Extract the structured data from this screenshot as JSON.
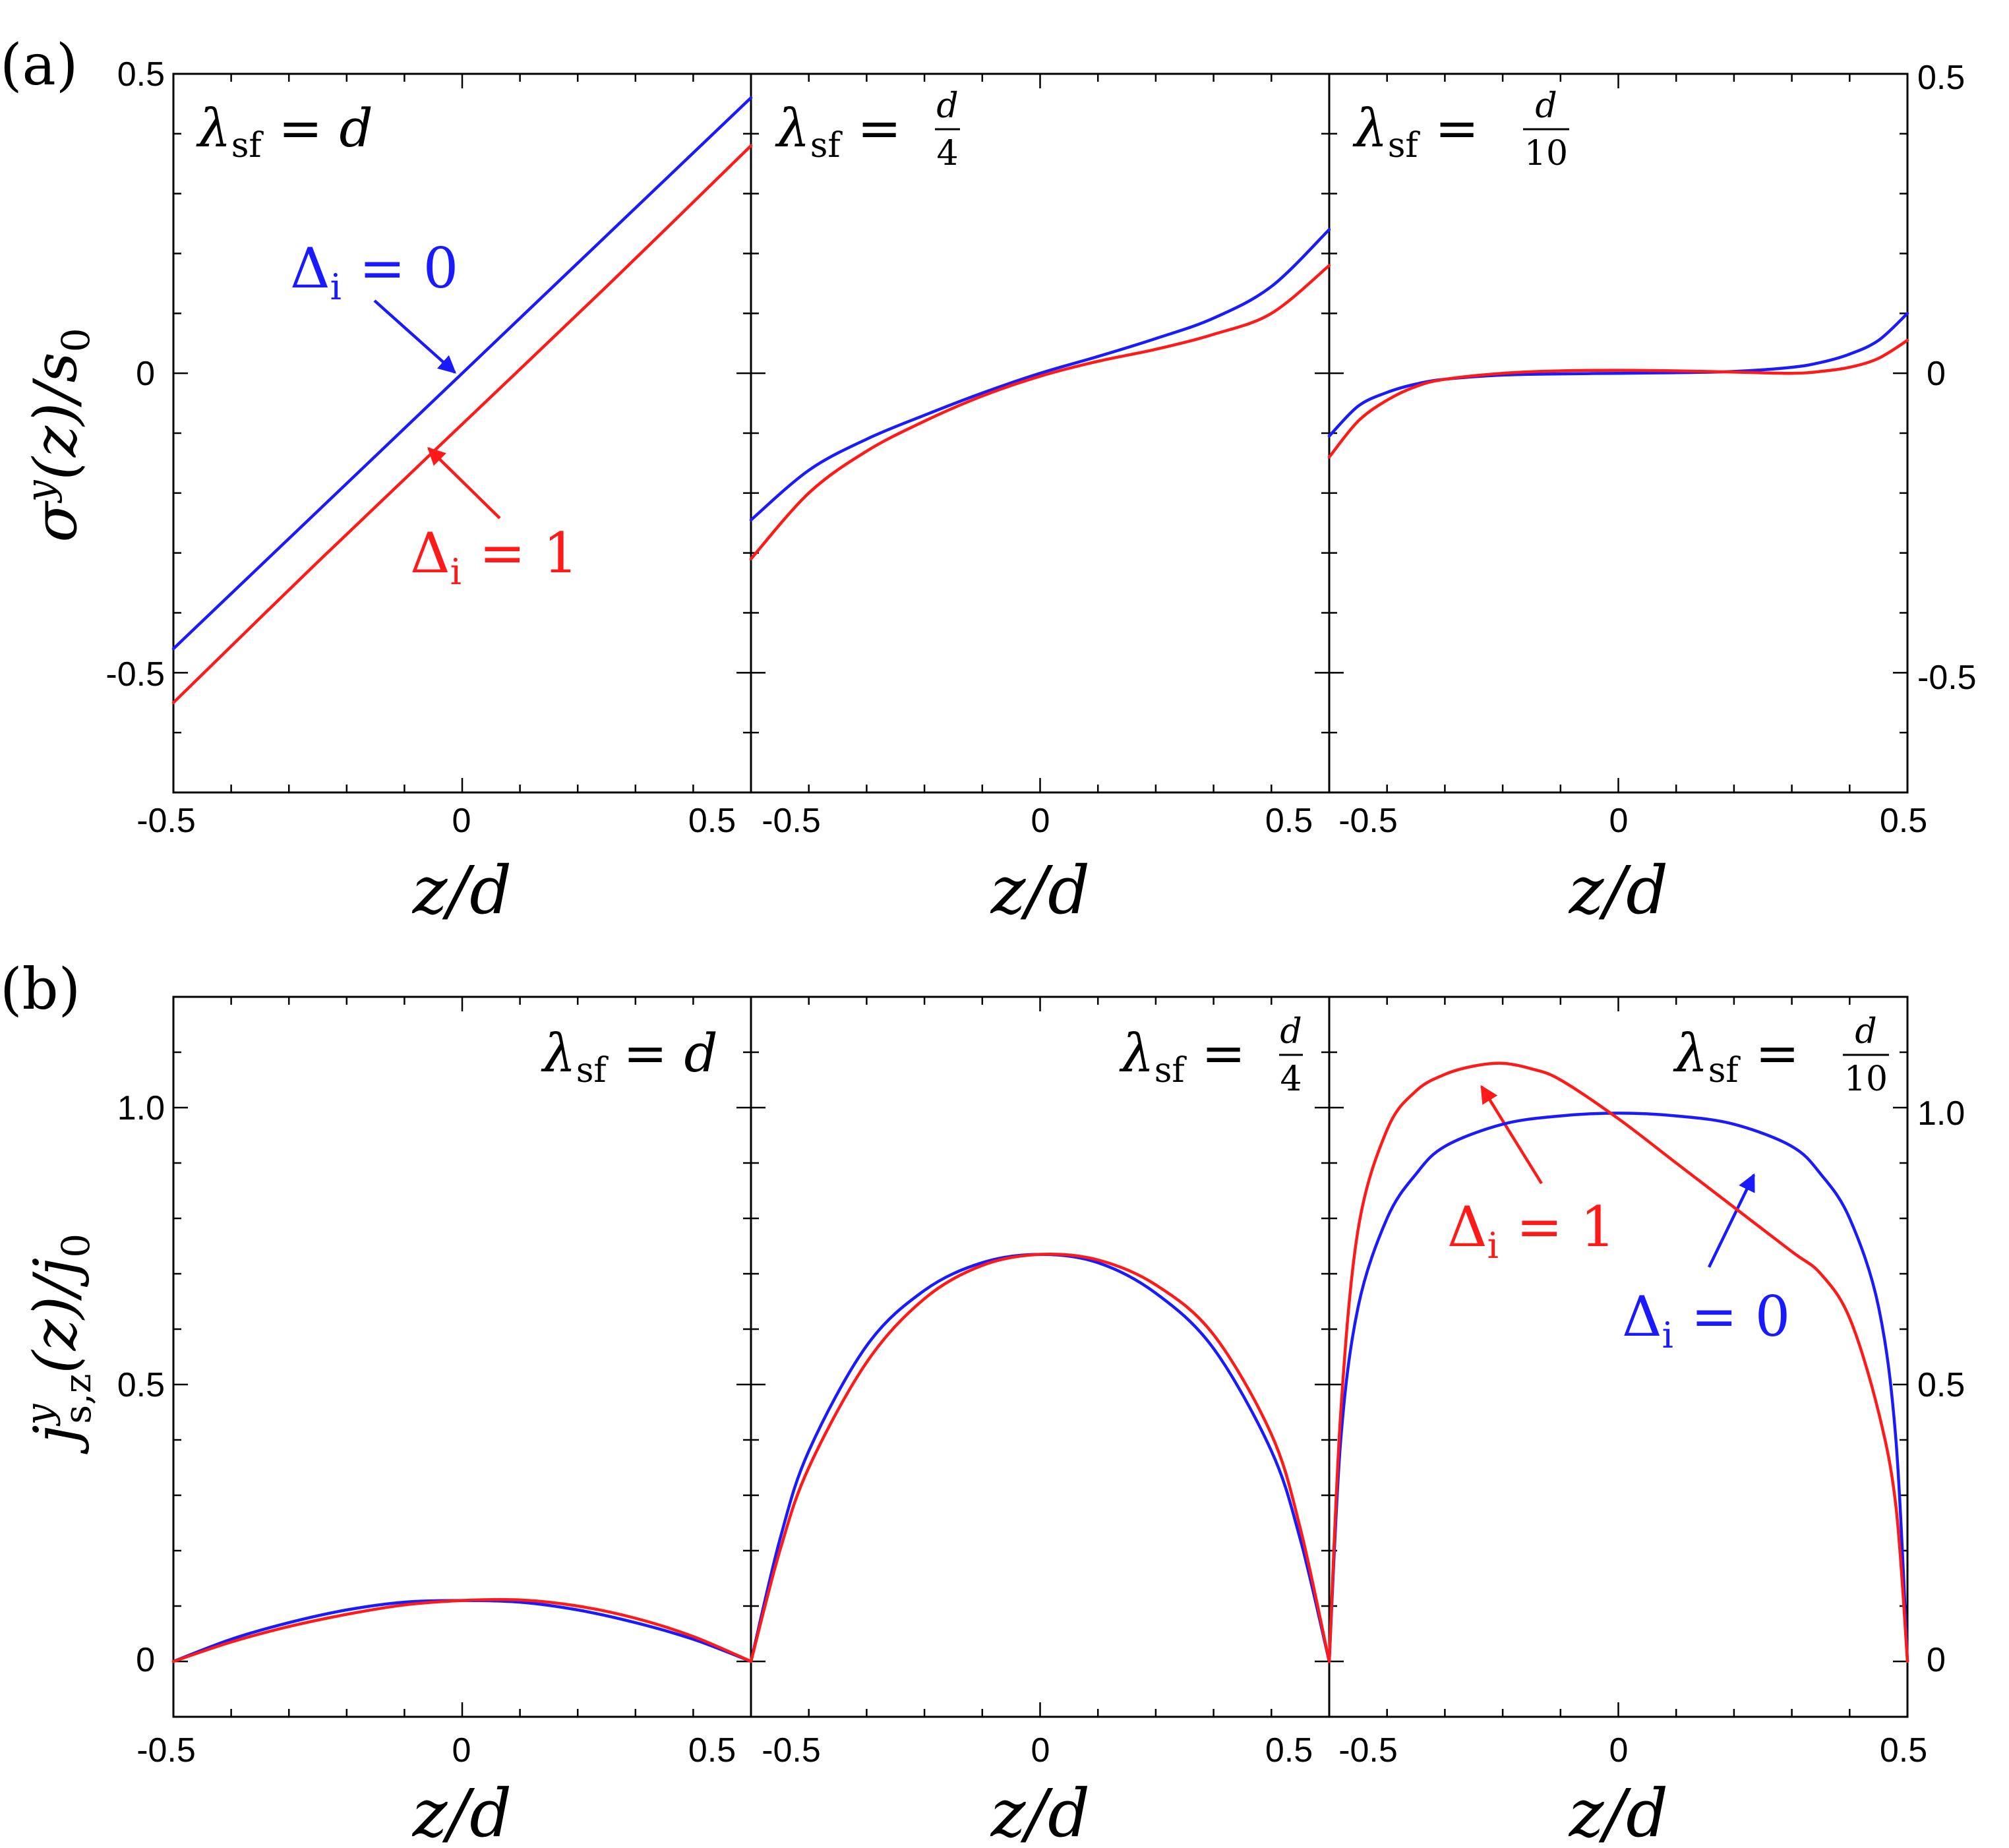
{
  "colors": {
    "delta_0": "#1a1aff",
    "delta_1": "#ff1a1a",
    "axis": "#000000"
  },
  "chart_data": [
    {
      "id": "a",
      "type": "line",
      "panel_tag": "(a)",
      "xlabel": "z/d",
      "ylabel": "σ^y(z)/s_0",
      "ylim": [
        -0.7,
        0.5
      ],
      "yticks": [
        "0.5",
        "0",
        "-0.5"
      ],
      "grid": false,
      "subplots": [
        {
          "title": "λ_sf = d",
          "xlim": [
            -0.5,
            0.5
          ],
          "xtick_labels": [
            "-0.5",
            "0",
            "0.5"
          ],
          "series": [
            {
              "name": "Δ_i = 0",
              "color": "#1a1aff",
              "x": [
                -0.5,
                -0.25,
                0,
                0.25,
                0.5
              ],
              "y": [
                -0.46,
                -0.23,
                0.0,
                0.23,
                0.46
              ]
            },
            {
              "name": "Δ_i = 1",
              "color": "#ff1a1a",
              "x": [
                -0.5,
                -0.25,
                0,
                0.25,
                0.5
              ],
              "y": [
                -0.55,
                -0.315,
                -0.085,
                0.145,
                0.38
              ]
            }
          ],
          "annotations": [
            {
              "text": "Δ_i = 0",
              "color": "#1a1aff",
              "points_to": [
                -0.01,
                0.0
              ]
            },
            {
              "text": "Δ_i = 1",
              "color": "#ff1a1a",
              "points_to": [
                -0.06,
                -0.13
              ]
            }
          ]
        },
        {
          "title": "λ_sf = d/4",
          "xlim": [
            -0.5,
            0.5
          ],
          "xtick_labels": [
            "-0.5",
            "0",
            "0.5"
          ],
          "series": [
            {
              "name": "Δ_i = 0",
              "color": "#1a1aff",
              "x": [
                -0.5,
                -0.4,
                -0.3,
                -0.2,
                -0.1,
                0,
                0.1,
                0.2,
                0.3,
                0.4,
                0.5
              ],
              "y": [
                -0.245,
                -0.162,
                -0.11,
                -0.07,
                -0.033,
                0.0,
                0.028,
                0.058,
                0.092,
                0.145,
                0.24
              ]
            },
            {
              "name": "Δ_i = 1",
              "color": "#ff1a1a",
              "x": [
                -0.5,
                -0.4,
                -0.3,
                -0.2,
                -0.1,
                0,
                0.1,
                0.2,
                0.3,
                0.4,
                0.5
              ],
              "y": [
                -0.31,
                -0.2,
                -0.13,
                -0.08,
                -0.038,
                -0.005,
                0.02,
                0.04,
                0.065,
                0.1,
                0.18
              ]
            }
          ]
        },
        {
          "title": "λ_sf = d/10",
          "xlim": [
            -0.5,
            0.5
          ],
          "xtick_labels": [
            "-0.5",
            "0",
            "0.5"
          ],
          "series": [
            {
              "name": "Δ_i = 0",
              "color": "#1a1aff",
              "x": [
                -0.5,
                -0.45,
                -0.4,
                -0.35,
                -0.3,
                -0.2,
                -0.1,
                0,
                0.1,
                0.2,
                0.3,
                0.35,
                0.4,
                0.45,
                0.5
              ],
              "y": [
                -0.105,
                -0.055,
                -0.032,
                -0.018,
                -0.01,
                -0.003,
                -0.001,
                0.0,
                0.001,
                0.003,
                0.01,
                0.018,
                0.032,
                0.055,
                0.1
              ]
            },
            {
              "name": "Δ_i = 1",
              "color": "#ff1a1a",
              "x": [
                -0.5,
                -0.45,
                -0.4,
                -0.35,
                -0.3,
                -0.2,
                -0.1,
                0,
                0.1,
                0.2,
                0.3,
                0.35,
                0.4,
                0.45,
                0.5
              ],
              "y": [
                -0.14,
                -0.08,
                -0.045,
                -0.022,
                -0.01,
                0.0,
                0.004,
                0.005,
                0.004,
                0.002,
                0.0,
                0.003,
                0.01,
                0.025,
                0.055
              ]
            }
          ]
        }
      ]
    },
    {
      "id": "b",
      "type": "line",
      "panel_tag": "(b)",
      "xlabel": "z/d",
      "ylabel": "j^y_{s,z}(z)/j_0",
      "ylim": [
        -0.1,
        1.2
      ],
      "yticks": [
        "1.0",
        "0.5",
        "0"
      ],
      "grid": false,
      "subplots": [
        {
          "title": "λ_sf = d",
          "xlim": [
            -0.5,
            0.5
          ],
          "xtick_labels": [
            "-0.5",
            "0",
            "0.5"
          ],
          "series": [
            {
              "name": "Δ_i = 0",
              "color": "#1a1aff",
              "x": [
                -0.5,
                -0.4,
                -0.3,
                -0.2,
                -0.1,
                0,
                0.1,
                0.2,
                0.3,
                0.4,
                0.5
              ],
              "y": [
                0.0,
                0.04,
                0.07,
                0.093,
                0.107,
                0.11,
                0.107,
                0.093,
                0.07,
                0.04,
                0.0
              ]
            },
            {
              "name": "Δ_i = 1",
              "color": "#ff1a1a",
              "x": [
                -0.5,
                -0.4,
                -0.3,
                -0.2,
                -0.1,
                0,
                0.1,
                0.2,
                0.3,
                0.4,
                0.5
              ],
              "y": [
                0.0,
                0.035,
                0.063,
                0.085,
                0.102,
                0.11,
                0.111,
                0.1,
                0.078,
                0.045,
                0.0
              ]
            }
          ]
        },
        {
          "title": "λ_sf = d/4",
          "xlim": [
            -0.5,
            0.5
          ],
          "xtick_labels": [
            "-0.5",
            "0",
            "0.5"
          ],
          "series": [
            {
              "name": "Δ_i = 0",
              "color": "#1a1aff",
              "x": [
                -0.5,
                -0.45,
                -0.4,
                -0.3,
                -0.2,
                -0.1,
                0,
                0.1,
                0.2,
                0.3,
                0.4,
                0.45,
                0.5
              ],
              "y": [
                0.0,
                0.22,
                0.38,
                0.57,
                0.67,
                0.72,
                0.735,
                0.72,
                0.665,
                0.565,
                0.38,
                0.22,
                0.0
              ]
            },
            {
              "name": "Δ_i = 1",
              "color": "#ff1a1a",
              "x": [
                -0.5,
                -0.45,
                -0.4,
                -0.3,
                -0.2,
                -0.1,
                0,
                0.1,
                0.2,
                0.3,
                0.4,
                0.45,
                0.5
              ],
              "y": [
                0.0,
                0.2,
                0.35,
                0.54,
                0.655,
                0.715,
                0.735,
                0.725,
                0.68,
                0.59,
                0.41,
                0.24,
                0.0
              ]
            }
          ]
        },
        {
          "title": "λ_sf = d/10",
          "xlim": [
            -0.5,
            0.5
          ],
          "xtick_labels": [
            "-0.5",
            "0",
            "0.5"
          ],
          "series": [
            {
              "name": "Δ_i = 0",
              "color": "#1a1aff",
              "x": [
                -0.5,
                -0.48,
                -0.45,
                -0.4,
                -0.35,
                -0.3,
                -0.2,
                -0.1,
                0,
                0.1,
                0.2,
                0.3,
                0.35,
                0.4,
                0.45,
                0.48,
                0.5
              ],
              "y": [
                0.0,
                0.4,
                0.64,
                0.8,
                0.88,
                0.93,
                0.97,
                0.985,
                0.99,
                0.985,
                0.97,
                0.93,
                0.88,
                0.8,
                0.64,
                0.4,
                0.0
              ]
            },
            {
              "name": "Δ_i = 1",
              "color": "#ff1a1a",
              "x": [
                -0.5,
                -0.48,
                -0.45,
                -0.4,
                -0.35,
                -0.3,
                -0.25,
                -0.2,
                -0.15,
                -0.1,
                0,
                0.1,
                0.2,
                0.3,
                0.35,
                0.4,
                0.45,
                0.48,
                0.5
              ],
              "y": [
                0.0,
                0.45,
                0.78,
                0.96,
                1.03,
                1.06,
                1.075,
                1.08,
                1.07,
                1.05,
                0.98,
                0.9,
                0.82,
                0.74,
                0.7,
                0.62,
                0.45,
                0.28,
                0.0
              ]
            }
          ],
          "annotations": [
            {
              "text": "Δ_i = 1",
              "color": "#ff1a1a",
              "points_to": [
                -0.24,
                1.05
              ]
            },
            {
              "text": "Δ_i = 0",
              "color": "#1a1aff",
              "points_to": [
                0.23,
                0.92
              ]
            }
          ]
        }
      ]
    }
  ]
}
